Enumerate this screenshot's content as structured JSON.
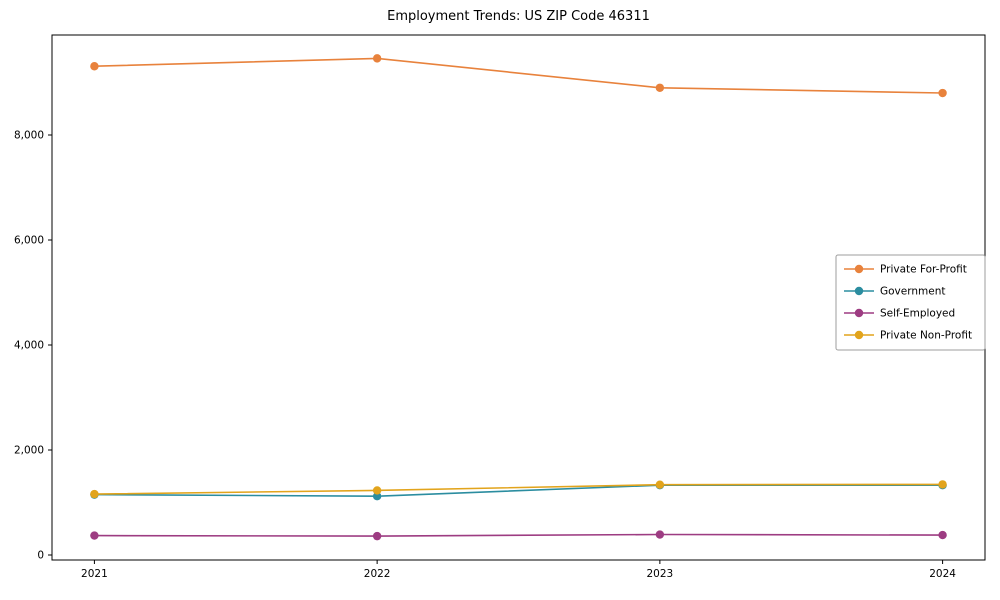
{
  "chart_data": {
    "type": "line",
    "title": "Employment Trends: US ZIP Code 46311",
    "xlabel": "",
    "ylabel": "",
    "x": [
      2021,
      2022,
      2023,
      2024
    ],
    "x_tick_labels": [
      "2021",
      "2022",
      "2023",
      "2024"
    ],
    "y_ticks": [
      0,
      2000,
      4000,
      6000,
      8000
    ],
    "y_tick_labels": [
      "0",
      "2,000",
      "4,000",
      "6,000",
      "8,000"
    ],
    "xlim": [
      2020.85,
      2024.15
    ],
    "ylim": [
      -95,
      9905
    ],
    "grid": false,
    "legend_position": "center right",
    "marker": "circle",
    "series": [
      {
        "name": "Private For-Profit",
        "color": "#e8823c",
        "values": [
          9310,
          9460,
          8900,
          8800
        ]
      },
      {
        "name": "Government",
        "color": "#2b8da0",
        "values": [
          1150,
          1120,
          1330,
          1330
        ]
      },
      {
        "name": "Self-Employed",
        "color": "#9d3c82",
        "values": [
          370,
          360,
          390,
          380
        ]
      },
      {
        "name": "Private Non-Profit",
        "color": "#e2a41c",
        "values": [
          1160,
          1230,
          1340,
          1345
        ]
      }
    ]
  }
}
